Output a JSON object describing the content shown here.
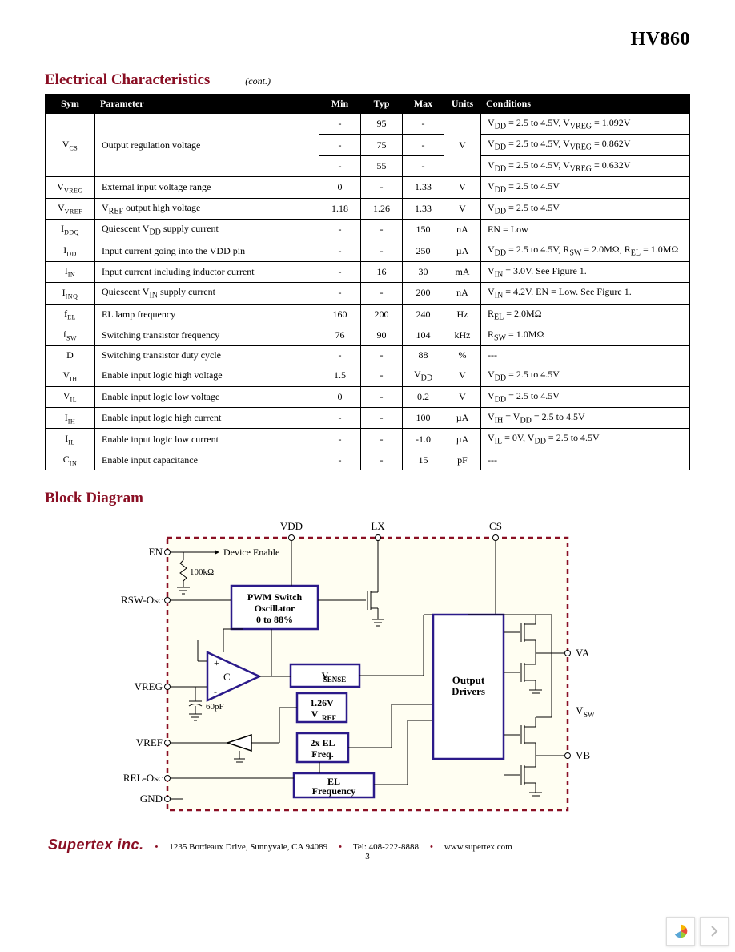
{
  "part_number": "HV860",
  "section": {
    "title": "Electrical Characteristics",
    "cont": "(cont.)"
  },
  "table": {
    "headers": [
      "Sym",
      "Parameter",
      "Min",
      "Typ",
      "Max",
      "Units",
      "Conditions"
    ],
    "rows": [
      {
        "sym": "V",
        "sub": "CS",
        "param": "Output regulation voltage",
        "min": "-",
        "typ": "95",
        "max": "-",
        "units": "V",
        "cond": "V<sub>DD</sub> = 2.5 to 4.5V, V<sub>VREG</sub> = 1.092V",
        "rowspan_sym": 3,
        "rowspan_param": 3,
        "rowspan_units": 3
      },
      {
        "min": "-",
        "typ": "75",
        "max": "-",
        "cond": "V<sub>DD</sub> = 2.5 to 4.5V, V<sub>VREG</sub> = 0.862V"
      },
      {
        "min": "-",
        "typ": "55",
        "max": "-",
        "cond": "V<sub>DD</sub> = 2.5 to 4.5V, V<sub>VREG</sub> = 0.632V"
      },
      {
        "sym": "V",
        "sub": "VREG",
        "param": "External input voltage range",
        "min": "0",
        "typ": "-",
        "max": "1.33",
        "units": "V",
        "cond": "V<sub>DD</sub> = 2.5 to 4.5V"
      },
      {
        "sym": "V",
        "sub": "VREF",
        "param": "V<sub>REF</sub> output high voltage",
        "min": "1.18",
        "typ": "1.26",
        "max": "1.33",
        "units": "V",
        "cond": "V<sub>DD</sub> = 2.5 to 4.5V"
      },
      {
        "sym": "I",
        "sub": "DDQ",
        "param": "Quiescent V<sub>DD</sub> supply current",
        "min": "-",
        "typ": "-",
        "max": "150",
        "units": "nA",
        "cond": "EN = Low"
      },
      {
        "sym": "I",
        "sub": "DD",
        "param": "Input current going into the VDD pin",
        "min": "-",
        "typ": "-",
        "max": "250",
        "units": "µA",
        "cond": "V<sub>DD</sub> = 2.5 to 4.5V, R<sub>SW</sub> = 2.0MΩ, R<sub>EL</sub> = 1.0MΩ"
      },
      {
        "sym": "I",
        "sub": "IN",
        "param": "Input current including inductor current",
        "min": "-",
        "typ": "16",
        "max": "30",
        "units": "mA",
        "cond": "V<sub>IN</sub> = 3.0V. See Figure 1."
      },
      {
        "sym": "I",
        "sub": "INQ",
        "param": "Quiescent V<sub>IN</sub> supply current",
        "min": "-",
        "typ": "-",
        "max": "200",
        "units": "nA",
        "cond": "V<sub>IN</sub> = 4.2V. EN = Low. See Figure 1."
      },
      {
        "sym": "f",
        "sub": "EL",
        "param": "EL lamp frequency",
        "min": "160",
        "typ": "200",
        "max": "240",
        "units": "Hz",
        "cond": "R<sub>EL</sub> = 2.0MΩ"
      },
      {
        "sym": "f",
        "sub": "SW",
        "param": "Switching transistor frequency",
        "min": "76",
        "typ": "90",
        "max": "104",
        "units": "kHz",
        "cond": "R<sub>SW</sub> = 1.0MΩ"
      },
      {
        "sym": "D",
        "sub": "",
        "param": "Switching transistor duty cycle",
        "min": "-",
        "typ": "-",
        "max": "88",
        "units": "%",
        "cond": "---"
      },
      {
        "sym": "V",
        "sub": "IH",
        "param": "Enable input logic high voltage",
        "min": "1.5",
        "typ": "-",
        "max": "V<sub>DD</sub>",
        "units": "V",
        "cond": "V<sub>DD</sub> = 2.5 to 4.5V"
      },
      {
        "sym": "V",
        "sub": "IL",
        "param": "Enable input logic low voltage",
        "min": "0",
        "typ": "-",
        "max": "0.2",
        "units": "V",
        "cond": "V<sub>DD</sub> = 2.5 to 4.5V"
      },
      {
        "sym": "I",
        "sub": "IH",
        "param": "Enable input logic high current",
        "min": "-",
        "typ": "-",
        "max": "100",
        "units": "µA",
        "cond": "V<sub>IH</sub> = V<sub>DD</sub> = 2.5 to 4.5V"
      },
      {
        "sym": "I",
        "sub": "IL",
        "param": "Enable input logic low current",
        "min": "-",
        "typ": "-",
        "max": "-1.0",
        "units": "µA",
        "cond": "V<sub>IL</sub> = 0V, V<sub>DD</sub> = 2.5 to 4.5V"
      },
      {
        "sym": "C",
        "sub": "IN",
        "param": "Enable input capacitance",
        "min": "-",
        "typ": "-",
        "max": "15",
        "units": "pF",
        "cond": "---"
      }
    ]
  },
  "block_diagram": {
    "title": "Block Diagram",
    "colors": {
      "background": "#fffef2",
      "border_dash": "#8a0f24",
      "block_border": "#2b1a8a",
      "wire": "#000000"
    },
    "pins_left": [
      "EN",
      "RSW-Osc",
      "VREG",
      "VREF",
      "REL-Osc",
      "GND"
    ],
    "pins_top": [
      "VDD",
      "LX",
      "CS"
    ],
    "pins_right": [
      "VA",
      "V<sub>SW</sub>",
      "VB"
    ],
    "internal_labels": [
      "Device Enable",
      "100kΩ",
      "60pF",
      "C"
    ],
    "blocks": {
      "pwm": "PWM Switch Oscillator 0 to 88%",
      "vsense": "V<sub>SENSE</sub>",
      "vref": "1.26V V<sub>REF</sub>",
      "el2x": "2x EL Freq.",
      "elfreq": "EL Frequency",
      "output": "Output Drivers"
    }
  },
  "footer": {
    "company": "Supertex inc.",
    "address": "1235 Bordeaux Drive, Sunnyvale, CA 94089",
    "tel": "Tel: 408-222-8888",
    "web": "www.supertex.com",
    "page": "3"
  }
}
